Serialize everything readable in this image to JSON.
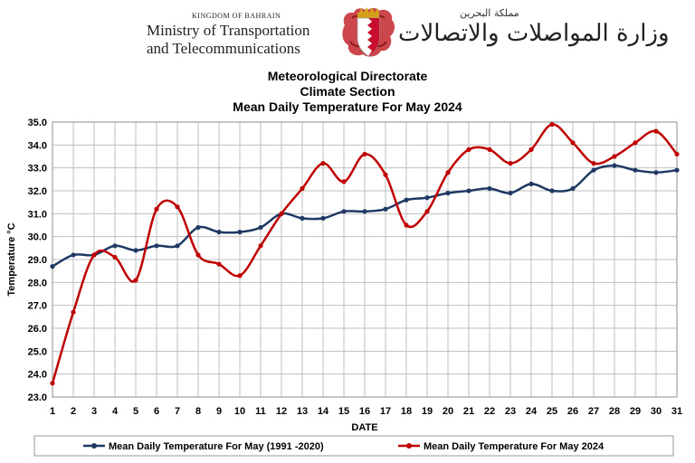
{
  "header": {
    "kingdom": "KINGDOM OF BAHRAIN",
    "ministry_line1": "Ministry of Transportation",
    "ministry_line2": "and Telecommunications",
    "arabic_small": "مملكة البحرين",
    "arabic_large": "وزارة المواصلات والاتصالات",
    "emblem_icon": "bahrain-emblem-icon"
  },
  "chart_data": {
    "type": "line",
    "title": [
      "Meteorological Directorate",
      "Climate Section",
      "Mean Daily  Temperature For May 2024"
    ],
    "xlabel": "DATE",
    "ylabel": "Temperature °C",
    "x": [
      1,
      2,
      3,
      4,
      5,
      6,
      7,
      8,
      9,
      10,
      11,
      12,
      13,
      14,
      15,
      16,
      17,
      18,
      19,
      20,
      21,
      22,
      23,
      24,
      25,
      26,
      27,
      28,
      29,
      30,
      31
    ],
    "ylim": [
      23.0,
      35.0
    ],
    "yticks": [
      "23.0",
      "24.0",
      "25.0",
      "26.0",
      "27.0",
      "28.0",
      "29.0",
      "30.0",
      "31.0",
      "32.0",
      "33.0",
      "34.0",
      "35.0"
    ],
    "grid": true,
    "legend_position": "bottom",
    "series": [
      {
        "name": "Mean Daily Temperature For May (1991 -2020)",
        "color": "#1f3864",
        "values": [
          28.7,
          29.2,
          29.2,
          29.6,
          29.4,
          29.6,
          29.6,
          30.4,
          30.2,
          30.2,
          30.4,
          31.0,
          30.8,
          30.8,
          31.1,
          31.1,
          31.2,
          31.6,
          31.7,
          31.9,
          32.0,
          32.1,
          31.9,
          32.3,
          32.0,
          32.1,
          32.9,
          33.1,
          32.9,
          32.8,
          32.9
        ]
      },
      {
        "name": "Mean Daily Temperature For May 2024",
        "color": "#c00000",
        "values": [
          23.6,
          26.7,
          29.2,
          29.1,
          28.1,
          31.2,
          31.3,
          29.2,
          28.8,
          28.3,
          29.6,
          31.0,
          32.1,
          33.2,
          32.4,
          33.6,
          32.7,
          30.5,
          31.1,
          32.8,
          33.8,
          33.8,
          33.2,
          33.8,
          34.9,
          34.1,
          33.2,
          33.5,
          34.1,
          34.6,
          33.6
        ]
      }
    ]
  }
}
